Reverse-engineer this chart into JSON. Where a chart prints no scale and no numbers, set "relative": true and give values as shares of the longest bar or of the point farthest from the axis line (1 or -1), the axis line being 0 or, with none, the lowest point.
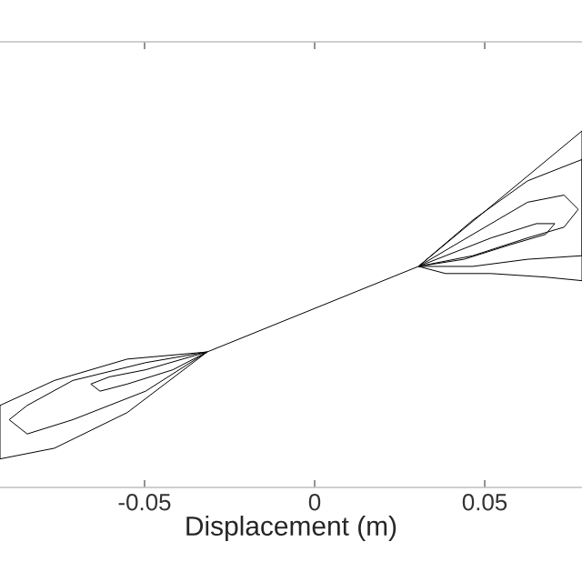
{
  "chart_data": {
    "type": "line",
    "relative": true,
    "xlabel": "Displacement (m)",
    "xlim": [
      -0.0925,
      0.0786
    ],
    "xticks": [
      -0.05,
      0,
      0.05
    ],
    "marker": "none",
    "line_style": "solid",
    "series": [
      {
        "color": "#000000",
        "x": [
          -0.0316,
          -0.0497,
          -0.0604,
          -0.0658,
          -0.0631,
          -0.0551,
          -0.0417,
          -0.0316,
          -0.0497,
          -0.0711,
          -0.0845,
          -0.0898,
          -0.0845,
          -0.0711,
          -0.0497,
          -0.0316,
          -0.0551,
          -0.0765,
          -0.0925,
          -0.0925,
          -0.0765,
          -0.0551,
          -0.0316,
          0.0305,
          0.0519,
          0.0652,
          0.0706,
          0.0679,
          0.0572,
          0.0439,
          0.0305,
          0.0465,
          0.0626,
          0.0733,
          0.0775,
          0.0733,
          0.0626,
          0.0465,
          0.0305,
          0.0465,
          0.0626,
          0.0786,
          0.0786,
          0.0626,
          0.0465,
          0.0305,
          0.0786,
          0.0786,
          0.0679,
          0.0519,
          0.0385,
          0.0305
        ],
        "values": [
          0.38,
          0.33,
          0.31,
          0.29,
          0.27,
          0.29,
          0.33,
          0.38,
          0.35,
          0.3,
          0.23,
          0.19,
          0.15,
          0.19,
          0.27,
          0.38,
          0.36,
          0.3,
          0.23,
          0.08,
          0.11,
          0.21,
          0.38,
          0.62,
          0.7,
          0.74,
          0.74,
          0.71,
          0.68,
          0.64,
          0.62,
          0.71,
          0.8,
          0.82,
          0.78,
          0.73,
          0.7,
          0.65,
          0.62,
          0.75,
          0.86,
          0.92,
          0.65,
          0.64,
          0.62,
          0.62,
          1.0,
          0.58,
          0.59,
          0.6,
          0.6,
          0.62
        ]
      }
    ]
  }
}
